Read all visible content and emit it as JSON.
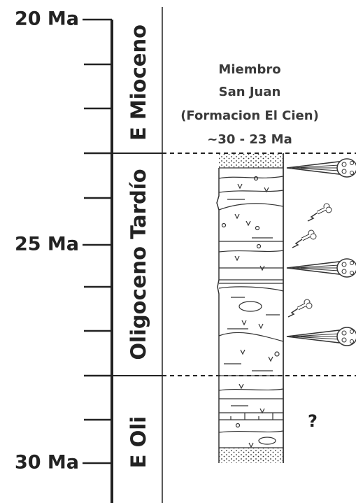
{
  "time_axis": {
    "labels": [
      "20 Ma",
      "25 Ma",
      "30 Ma"
    ]
  },
  "epochs": [
    "E Mioceno",
    "Oligoceno Tardío",
    "E Oli"
  ],
  "unit": {
    "lines": [
      "Miembro",
      "San Juan",
      "(Formacion El Cien)",
      "~30 - 23 Ma"
    ]
  },
  "unknown_marker": "?"
}
